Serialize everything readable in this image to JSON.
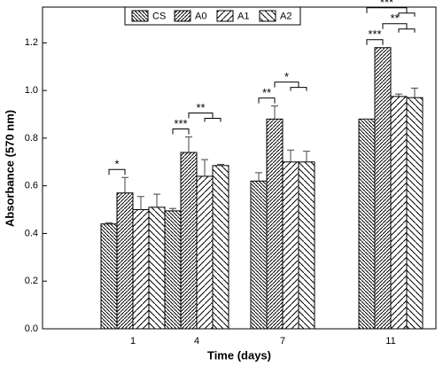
{
  "chart_data": {
    "type": "bar",
    "x_label": "Time (days)",
    "y_label": "Absorbance (570 nm)",
    "categories": [
      "1",
      "4",
      "7",
      "11"
    ],
    "series": [
      {
        "name": "CS",
        "color": "#000000",
        "values": [
          0.44,
          0.495,
          0.62,
          0.88
        ],
        "errors": [
          0.005,
          0.01,
          0.035,
          0
        ]
      },
      {
        "name": "A0",
        "color": "#000000",
        "values": [
          0.57,
          0.74,
          0.88,
          1.18
        ],
        "errors": [
          0.065,
          0.065,
          0.055,
          0
        ]
      },
      {
        "name": "A1",
        "color": "#000000",
        "values": [
          0.5,
          0.64,
          0.7,
          0.975
        ],
        "errors": [
          0.055,
          0.07,
          0.05,
          0.01
        ]
      },
      {
        "name": "A2",
        "color": "#000000",
        "values": [
          0.51,
          0.685,
          0.7,
          0.97
        ],
        "errors": [
          0.055,
          0.005,
          0.045,
          0.04
        ]
      }
    ],
    "ylim": [
      0,
      1.35
    ],
    "yticks": [
      {
        "value": 0,
        "label": "0.0"
      },
      0.2,
      0.4,
      0.6,
      0.8,
      {
        "value": 1,
        "label": "1.0"
      },
      1.2
    ],
    "annotations": [
      {
        "text": "*",
        "category": 0,
        "from": [
          0
        ],
        "to": [
          1
        ]
      },
      {
        "text": "***",
        "category": 1,
        "from": [
          0
        ],
        "to": [
          1
        ]
      },
      {
        "text": "**",
        "category": 1,
        "from": [
          1
        ],
        "to": [
          2,
          3
        ]
      },
      {
        "text": "**",
        "category": 2,
        "from": [
          0
        ],
        "to": [
          1
        ]
      },
      {
        "text": "*",
        "category": 2,
        "from": [
          1
        ],
        "to": [
          2,
          3
        ]
      },
      {
        "text": "***",
        "category": 3,
        "from": [
          0
        ],
        "to": [
          1
        ]
      },
      {
        "text": "**",
        "category": 3,
        "from": [
          1
        ],
        "to": [
          2,
          3
        ]
      },
      {
        "text": "***",
        "category": 3,
        "from": [
          0
        ],
        "to": [
          2,
          3
        ]
      }
    ]
  }
}
